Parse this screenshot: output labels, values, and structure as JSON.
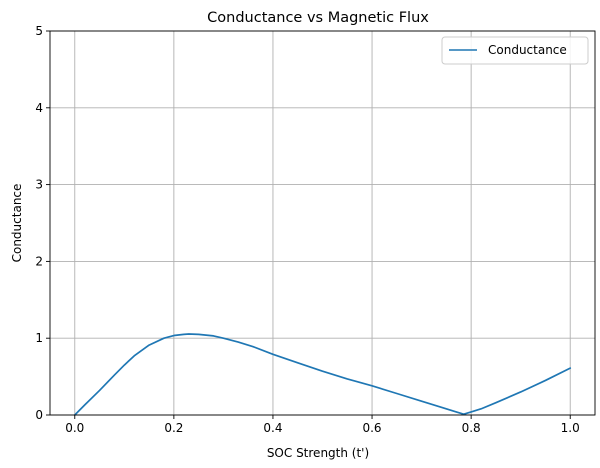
{
  "chart_data": {
    "type": "line",
    "title": "Conductance vs Magnetic Flux",
    "xlabel": "SOC Strength (t')",
    "ylabel": "Conductance",
    "xlim": [
      -0.05,
      1.05
    ],
    "ylim": [
      0,
      5
    ],
    "xticks": [
      0.0,
      0.2,
      0.4,
      0.6,
      0.8,
      1.0
    ],
    "xtick_labels": [
      "0.0",
      "0.2",
      "0.4",
      "0.6",
      "0.8",
      "1.0"
    ],
    "yticks": [
      0,
      1,
      2,
      3,
      4,
      5
    ],
    "ytick_labels": [
      "0",
      "1",
      "2",
      "3",
      "4",
      "5"
    ],
    "grid": true,
    "legend": {
      "position": "top-right",
      "entries": [
        "Conductance"
      ]
    },
    "series": [
      {
        "name": "Conductance",
        "color": "#1f77b4",
        "x": [
          0.0,
          0.02,
          0.05,
          0.08,
          0.1,
          0.12,
          0.15,
          0.18,
          0.2,
          0.22,
          0.23,
          0.25,
          0.28,
          0.3,
          0.33,
          0.36,
          0.4,
          0.45,
          0.5,
          0.55,
          0.6,
          0.65,
          0.7,
          0.74,
          0.77,
          0.785,
          0.8,
          0.82,
          0.85,
          0.9,
          0.95,
          1.0
        ],
        "y": [
          0.0,
          0.13,
          0.32,
          0.52,
          0.65,
          0.77,
          0.91,
          1.0,
          1.035,
          1.05,
          1.055,
          1.05,
          1.03,
          1.0,
          0.95,
          0.89,
          0.79,
          0.68,
          0.57,
          0.47,
          0.38,
          0.28,
          0.18,
          0.1,
          0.04,
          0.01,
          0.04,
          0.08,
          0.16,
          0.3,
          0.45,
          0.61
        ]
      }
    ]
  }
}
